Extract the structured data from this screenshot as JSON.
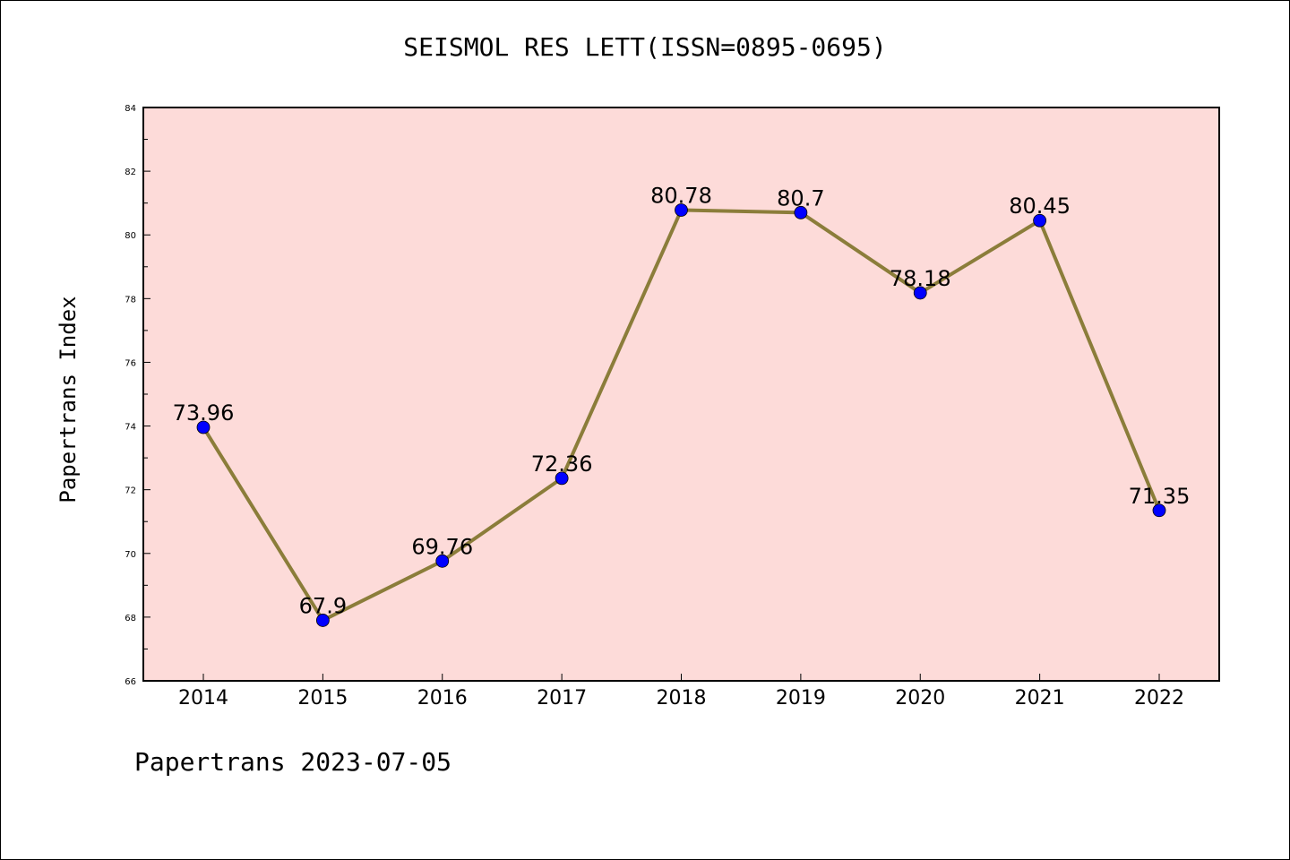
{
  "title": "SEISMOL RES LETT(ISSN=0895-0695)",
  "footer": "Papertrans 2023-07-05",
  "chart_data": {
    "type": "line",
    "title": "SEISMOL RES LETT(ISSN=0895-0695)",
    "xlabel": "",
    "ylabel": "Papertrans Index",
    "categories": [
      "2014",
      "2015",
      "2016",
      "2017",
      "2018",
      "2019",
      "2020",
      "2021",
      "2022"
    ],
    "series": [
      {
        "values": [
          73.96,
          67.9,
          69.76,
          72.36,
          80.78,
          80.7,
          78.18,
          80.45,
          71.35
        ],
        "labels": [
          "73.96",
          "67.9",
          "69.76",
          "72.36",
          "80.78",
          "80.7",
          "78.18",
          "80.45",
          "71.35"
        ],
        "line_color": "#8B7D3A",
        "marker_color": "#0000FF"
      }
    ],
    "ylim": [
      66,
      84
    ],
    "yticks": [
      "66",
      "68",
      "70",
      "72",
      "74",
      "76",
      "78",
      "80",
      "82",
      "84"
    ],
    "grid": false,
    "plot_background": "#FDDBD9"
  }
}
